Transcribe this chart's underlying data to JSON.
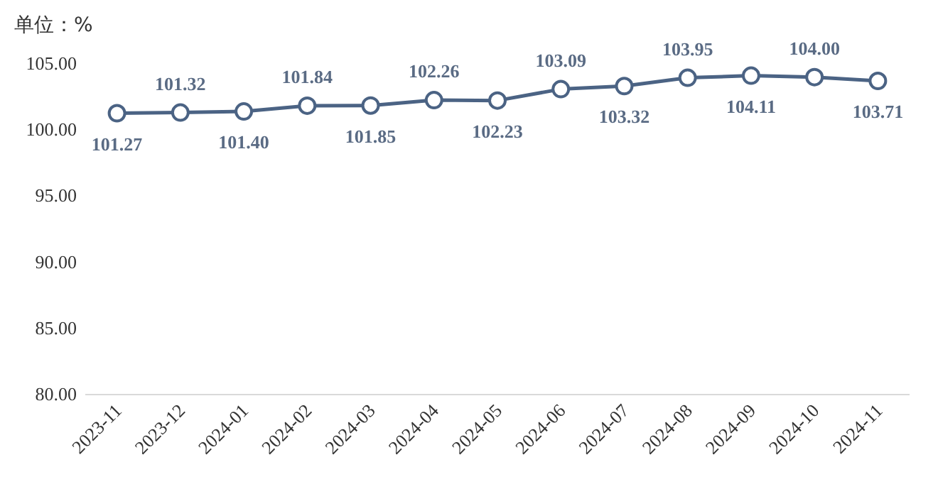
{
  "chart_data": {
    "type": "line",
    "ylabel": "单位：%",
    "categories": [
      "2023-11",
      "2023-12",
      "2024-01",
      "2024-02",
      "2024-03",
      "2024-04",
      "2024-05",
      "2024-06",
      "2024-07",
      "2024-08",
      "2024-09",
      "2024-10",
      "2024-11"
    ],
    "series": [
      {
        "color": "#4b6384",
        "values": [
          101.27,
          101.32,
          101.4,
          101.84,
          101.85,
          102.26,
          102.23,
          103.09,
          103.32,
          103.95,
          104.11,
          104.0,
          103.71
        ],
        "value_labels": [
          "101.27",
          "101.32",
          "101.40",
          "101.84",
          "101.85",
          "102.26",
          "102.23",
          "103.09",
          "103.32",
          "103.95",
          "104.11",
          "104.00",
          "103.71"
        ]
      }
    ],
    "ylim": [
      80,
      105
    ],
    "yticks": [
      {
        "value": 80,
        "label": "80.00"
      },
      {
        "value": 85,
        "label": "85.00"
      },
      {
        "value": 90,
        "label": "90.00"
      },
      {
        "value": 95,
        "label": "95.00"
      },
      {
        "value": 100,
        "label": "100.00"
      },
      {
        "value": 105,
        "label": "105.00"
      }
    ],
    "marker": "circle",
    "line_style": "solid",
    "grid": false
  }
}
